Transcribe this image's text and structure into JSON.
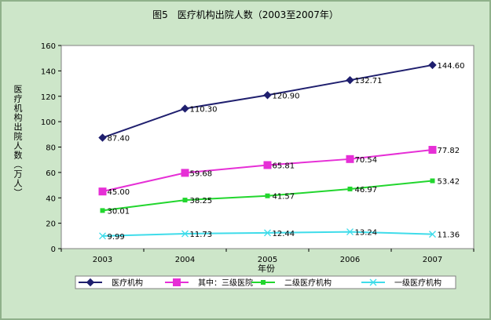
{
  "chart_data": {
    "type": "line",
    "title": "图5　医疗机构出院人数（2003至2007年）",
    "xlabel": "年份",
    "ylabel": "医疗机构出院人数（万人）",
    "categories": [
      "2003",
      "2004",
      "2005",
      "2006",
      "2007"
    ],
    "ylim": [
      0,
      160
    ],
    "yticks": [
      0,
      20,
      40,
      60,
      80,
      100,
      120,
      140,
      160
    ],
    "grid": false,
    "legend_position": "bottom",
    "series": [
      {
        "name": "医疗机构",
        "color": "#1f1f6e",
        "marker": "diamond",
        "values": [
          87.4,
          110.3,
          120.9,
          132.71,
          144.6
        ],
        "labels": [
          "87.40",
          "110.30",
          "120.90",
          "132.71",
          "144.60"
        ]
      },
      {
        "name": "其中：三级医院",
        "color": "#e62fd6",
        "marker": "square",
        "values": [
          45.0,
          59.68,
          65.81,
          70.54,
          77.82
        ],
        "labels": [
          "45.00",
          "59.68",
          "65.81",
          "70.54",
          "77.82"
        ]
      },
      {
        "name": "二级医疗机构",
        "color": "#22d62e",
        "marker": "square-small",
        "values": [
          30.01,
          38.25,
          41.57,
          46.97,
          53.42
        ],
        "labels": [
          "30.01",
          "38.25",
          "41.57",
          "46.97",
          "53.42"
        ]
      },
      {
        "name": "一级医疗机构",
        "color": "#3fdcea",
        "marker": "x",
        "values": [
          9.99,
          11.73,
          12.44,
          13.24,
          11.36
        ],
        "labels": [
          "9.99",
          "11.73",
          "12.44",
          "13.24",
          "11.36"
        ]
      }
    ]
  }
}
